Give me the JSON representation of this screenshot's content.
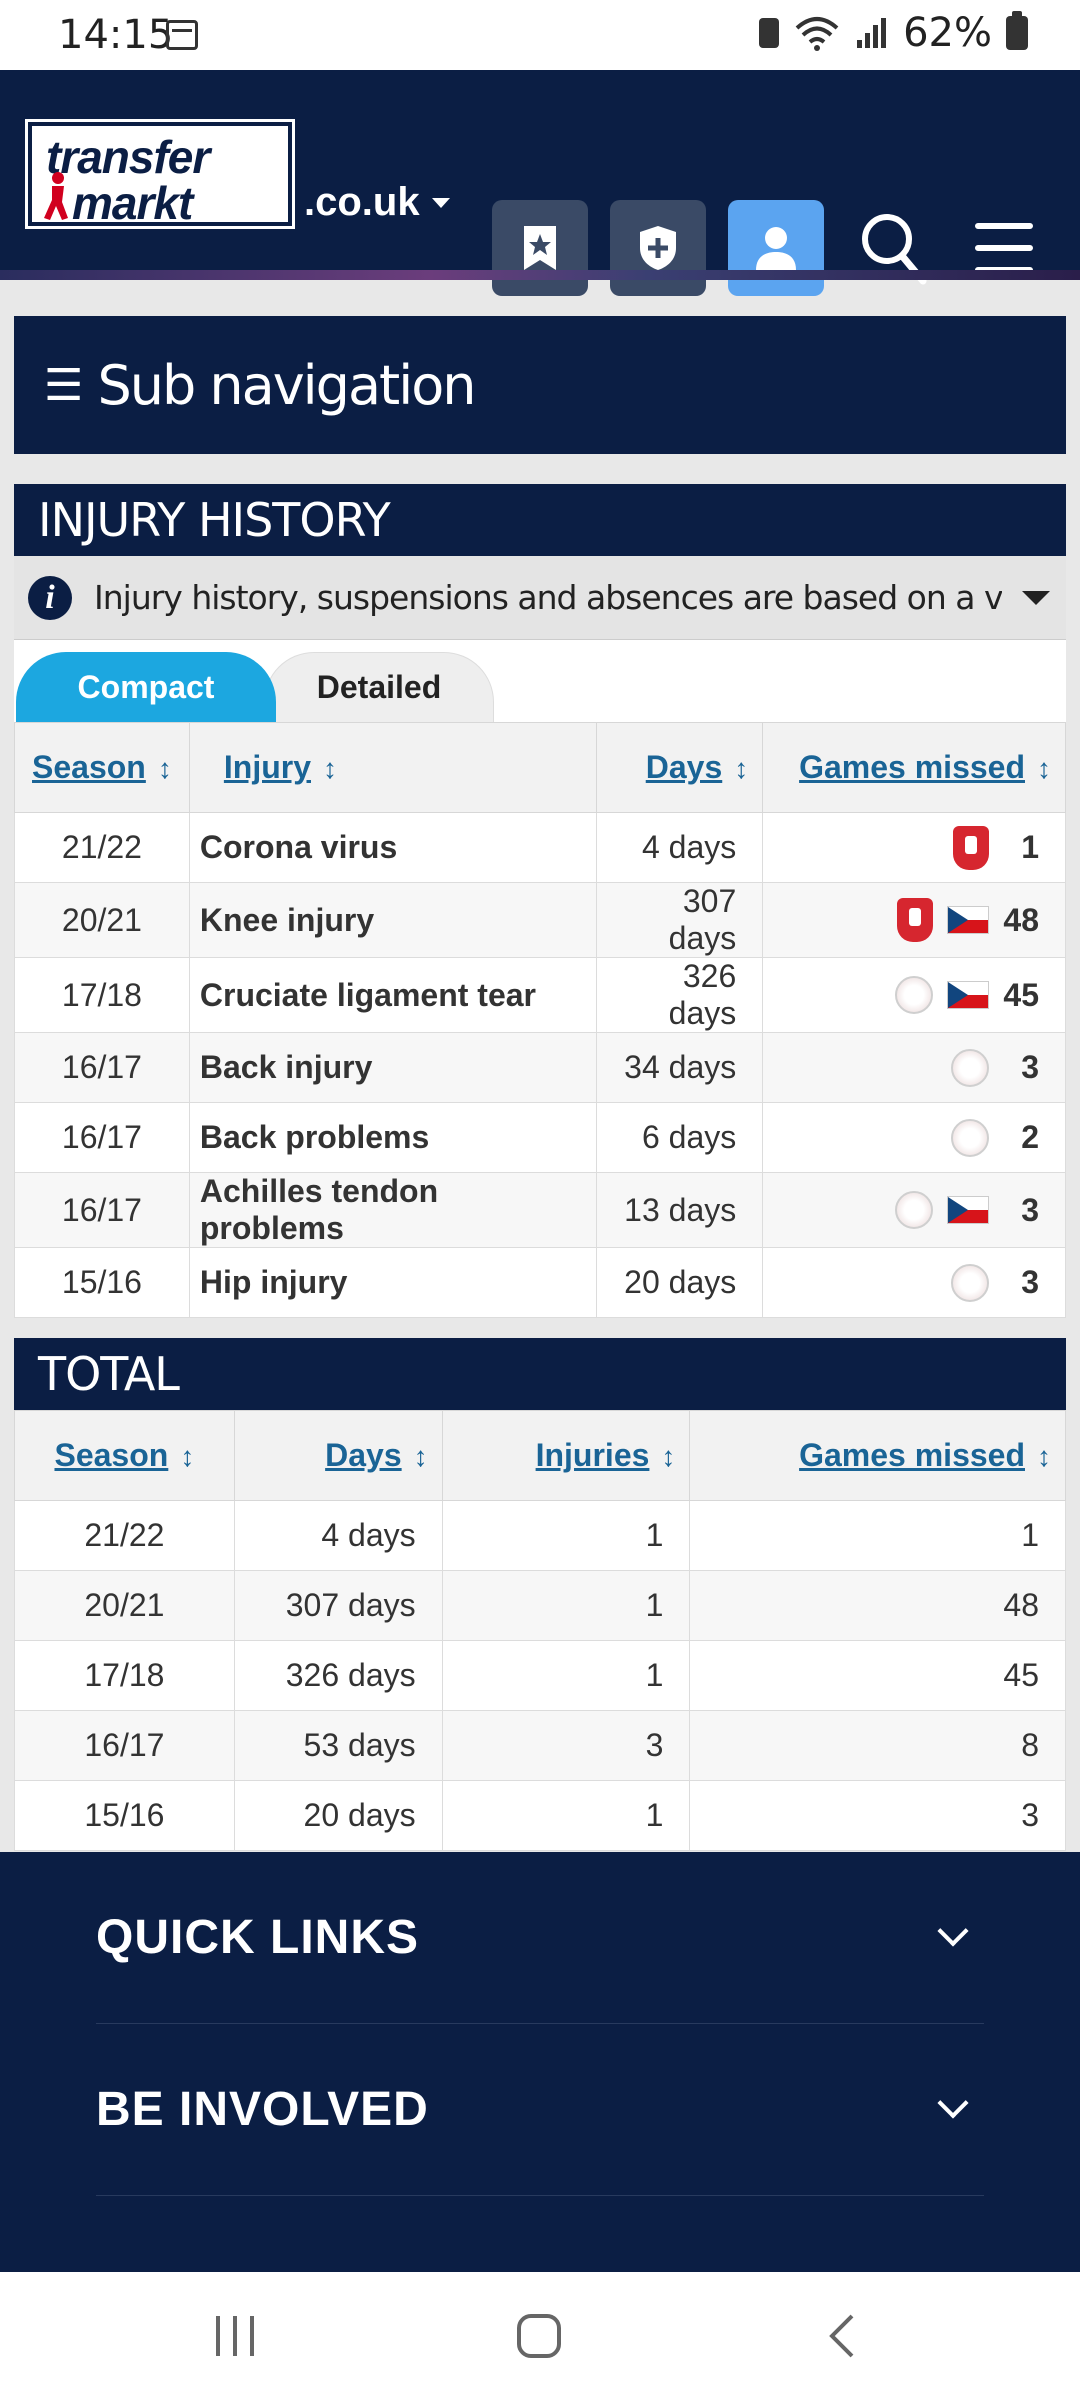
{
  "status_bar": {
    "time": "14:15",
    "battery": "62%"
  },
  "header": {
    "logo_line1": "transfer",
    "logo_line2": "markt",
    "domain": ".co.uk"
  },
  "subnav": {
    "label": "Sub navigation"
  },
  "injury_history": {
    "title": "INJURY HISTORY",
    "info_text": "Injury history, suspensions and absences are based on a variety of medi...",
    "tabs": {
      "compact": "Compact",
      "detailed": "Detailed"
    },
    "columns": {
      "season": "Season",
      "injury": "Injury",
      "days": "Days",
      "games_missed": "Games missed"
    },
    "rows": [
      {
        "season": "21/22",
        "injury": "Corona virus",
        "days": "4 days",
        "games": "1",
        "badges": [
          "twente"
        ]
      },
      {
        "season": "20/21",
        "injury": "Knee injury",
        "days": "307 days",
        "games": "48",
        "badges": [
          "twente",
          "czech"
        ]
      },
      {
        "season": "17/18",
        "injury": "Cruciate ligament tear",
        "days": "326 days",
        "games": "45",
        "badges": [
          "ajax",
          "czech"
        ]
      },
      {
        "season": "16/17",
        "injury": "Back injury",
        "days": "34 days",
        "games": "3",
        "badges": [
          "ajax"
        ]
      },
      {
        "season": "16/17",
        "injury": "Back problems",
        "days": "6 days",
        "games": "2",
        "badges": [
          "ajax"
        ]
      },
      {
        "season": "16/17",
        "injury": "Achilles tendon problems",
        "days": "13 days",
        "games": "3",
        "badges": [
          "ajax",
          "czech"
        ]
      },
      {
        "season": "15/16",
        "injury": "Hip injury",
        "days": "20 days",
        "games": "3",
        "badges": [
          "ajax"
        ]
      }
    ]
  },
  "total": {
    "title": "TOTAL",
    "columns": {
      "season": "Season",
      "days": "Days",
      "injuries": "Injuries",
      "games_missed": "Games missed"
    },
    "rows": [
      {
        "season": "21/22",
        "days": "4 days",
        "injuries": "1",
        "games": "1"
      },
      {
        "season": "20/21",
        "days": "307 days",
        "injuries": "1",
        "games": "48"
      },
      {
        "season": "17/18",
        "days": "326 days",
        "injuries": "1",
        "games": "45"
      },
      {
        "season": "16/17",
        "days": "53 days",
        "injuries": "3",
        "games": "8"
      },
      {
        "season": "15/16",
        "days": "20 days",
        "injuries": "1",
        "games": "3"
      }
    ]
  },
  "footer": {
    "quick_links": "QUICK LINKS",
    "be_involved": "BE INVOLVED"
  },
  "colors": {
    "navy": "#0b1e44",
    "accent_blue": "#1ca7e0",
    "link": "#1a6496",
    "active_button": "#5ba4f0"
  }
}
